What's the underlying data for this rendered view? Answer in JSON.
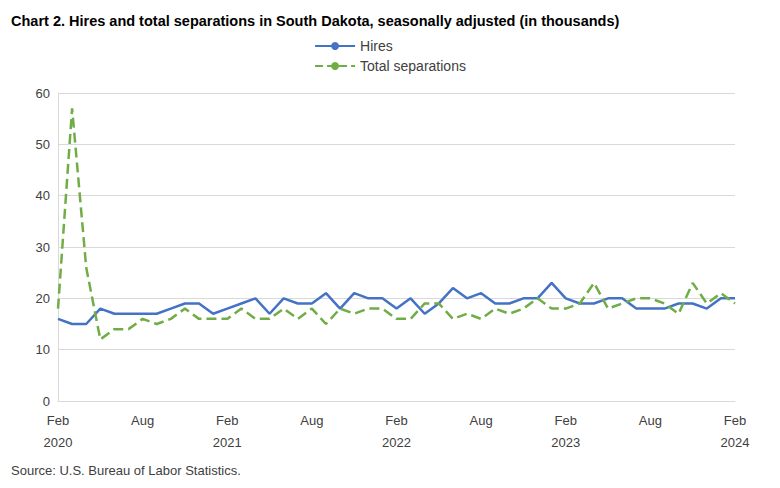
{
  "chart_data": {
    "type": "line",
    "title": "Chart 2. Hires and total separations in South Dakota, seasonally adjusted (in thousands)",
    "source": "Source: U.S. Bureau of Labor Statistics.",
    "categories": [
      "Feb 2020",
      null,
      null,
      null,
      null,
      null,
      "Aug",
      null,
      null,
      null,
      null,
      null,
      "Feb 2021",
      null,
      null,
      null,
      null,
      null,
      "Aug",
      null,
      null,
      null,
      null,
      null,
      "Feb 2022",
      null,
      null,
      null,
      null,
      null,
      "Aug",
      null,
      null,
      null,
      null,
      null,
      "Feb 2023",
      null,
      null,
      null,
      null,
      null,
      "Aug",
      null,
      null,
      null,
      null,
      null,
      "Feb 2024"
    ],
    "series": [
      {
        "name": "Hires",
        "color": "#4472c4",
        "line_style": "solid",
        "values": [
          16,
          15,
          15,
          18,
          17,
          17,
          17,
          17,
          18,
          19,
          19,
          17,
          18,
          19,
          20,
          17,
          20,
          19,
          19,
          21,
          18,
          21,
          20,
          20,
          18,
          20,
          17,
          19,
          22,
          20,
          21,
          19,
          19,
          20,
          20,
          23,
          20,
          19,
          19,
          20,
          20,
          18,
          18,
          18,
          19,
          19,
          18,
          20,
          20
        ]
      },
      {
        "name": "Total separations",
        "color": "#70ad47",
        "line_style": "dashed",
        "values": [
          18,
          57,
          26,
          12,
          14,
          14,
          16,
          15,
          16,
          18,
          16,
          16,
          16,
          18,
          16,
          16,
          18,
          16,
          18,
          15,
          18,
          17,
          18,
          18,
          16,
          16,
          19,
          19,
          16,
          17,
          16,
          18,
          17,
          18,
          20,
          18,
          18,
          19,
          23,
          18,
          19,
          20,
          20,
          19,
          17,
          23,
          19,
          21,
          19
        ]
      }
    ],
    "ylim": [
      0,
      60
    ],
    "yticks": [
      0,
      10,
      20,
      30,
      40,
      50,
      60
    ],
    "grid": true,
    "legend": "top"
  }
}
